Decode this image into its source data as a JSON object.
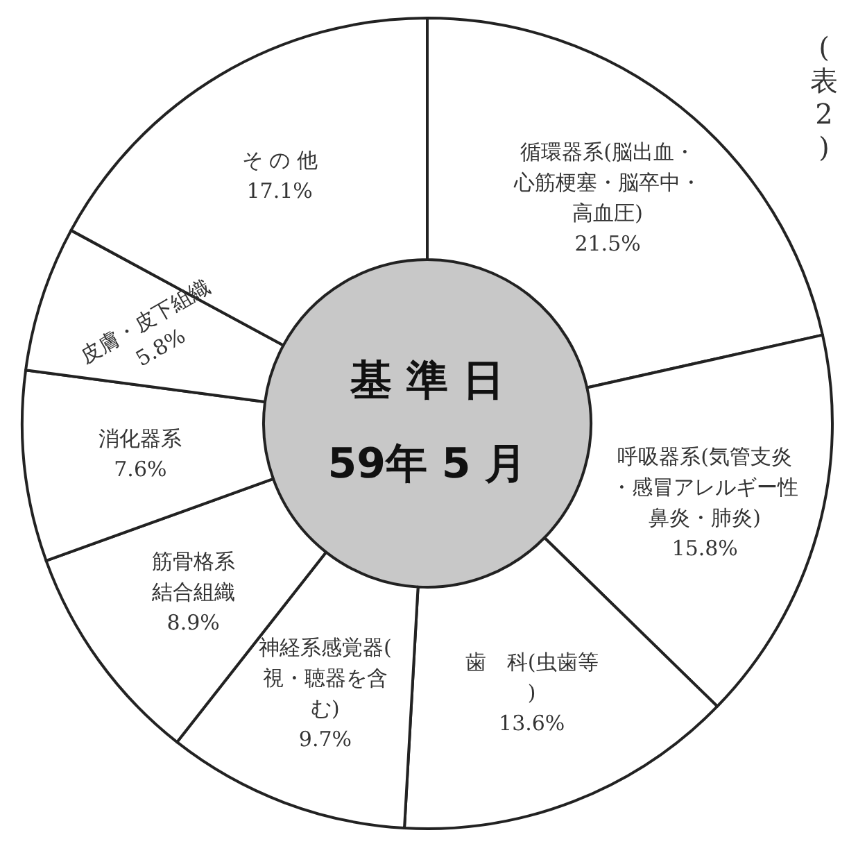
{
  "chart_data": {
    "type": "donut",
    "title": "基 準 日\n59年 5 月",
    "categories": [
      "循環器系(脳出血・心筋梗塞・脳卒中・高血圧)",
      "呼吸器系(気管支炎・感冒アレルギー性鼻炎・肺炎)",
      "歯　科(虫歯等)",
      "神経系感覚器(視・聴器を含む)",
      "筋骨格系結合組織",
      "消化器系",
      "皮膚・皮下組織",
      "そ の 他"
    ],
    "values": [
      21.5,
      15.8,
      13.6,
      9.7,
      8.9,
      7.6,
      5.8,
      17.1
    ],
    "value_labels": [
      "21.5%",
      "15.8%",
      "13.6%",
      "9.7%",
      "8.9%",
      "7.6%",
      "5.8%",
      "17.1%"
    ],
    "colors": [
      "#ffffff",
      "#ffffff",
      "#ffffff",
      "#ffffff",
      "#ffffff",
      "#ffffff",
      "#ffffff",
      "#ffffff"
    ],
    "annotations": [
      "(表2)"
    ]
  }
}
